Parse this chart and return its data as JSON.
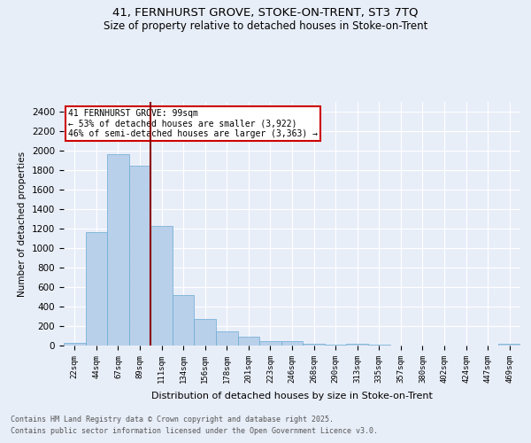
{
  "title_line1": "41, FERNHURST GROVE, STOKE-ON-TRENT, ST3 7TQ",
  "title_line2": "Size of property relative to detached houses in Stoke-on-Trent",
  "xlabel": "Distribution of detached houses by size in Stoke-on-Trent",
  "ylabel": "Number of detached properties",
  "annotation_line1": "41 FERNHURST GROVE: 99sqm",
  "annotation_line2": "← 53% of detached houses are smaller (3,922)",
  "annotation_line3": "46% of semi-detached houses are larger (3,363) →",
  "bar_labels": [
    "22sqm",
    "44sqm",
    "67sqm",
    "89sqm",
    "111sqm",
    "134sqm",
    "156sqm",
    "178sqm",
    "201sqm",
    "223sqm",
    "246sqm",
    "268sqm",
    "290sqm",
    "313sqm",
    "335sqm",
    "357sqm",
    "380sqm",
    "402sqm",
    "424sqm",
    "447sqm",
    "469sqm"
  ],
  "bar_values": [
    25,
    1160,
    1960,
    1850,
    1230,
    520,
    275,
    150,
    90,
    42,
    42,
    20,
    10,
    15,
    5,
    3,
    3,
    3,
    2,
    2,
    15
  ],
  "bar_color": "#b8d0ea",
  "bar_edge_color": "#6aaad4",
  "vline_x": 3.5,
  "vline_color": "#8b0000",
  "ylim": [
    0,
    2500
  ],
  "yticks": [
    0,
    200,
    400,
    600,
    800,
    1000,
    1200,
    1400,
    1600,
    1800,
    2000,
    2200,
    2400
  ],
  "footnote_line1": "Contains HM Land Registry data © Crown copyright and database right 2025.",
  "footnote_line2": "Contains public sector information licensed under the Open Government Licence v3.0.",
  "bg_color": "#e8eef8",
  "plot_bg_color": "#e8eef8",
  "grid_color": "#ffffff",
  "annotation_box_color": "#cc0000"
}
